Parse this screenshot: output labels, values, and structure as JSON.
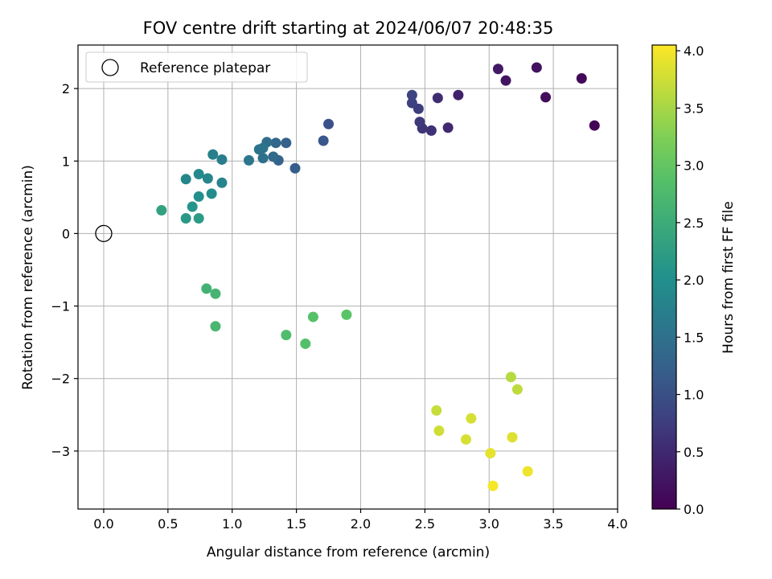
{
  "chart_data": {
    "type": "scatter",
    "title": "FOV centre drift starting at 2024/06/07 20:48:35",
    "xlabel": "Angular distance from reference (arcmin)",
    "ylabel": "Rotation from reference (arcmin)",
    "xlim": [
      -0.2,
      4.0
    ],
    "ylim": [
      -3.8,
      2.6
    ],
    "xticks": [
      0.0,
      0.5,
      1.0,
      1.5,
      2.0,
      2.5,
      3.0,
      3.5,
      4.0
    ],
    "xtick_labels": [
      "0.0",
      "0.5",
      "1.0",
      "1.5",
      "2.0",
      "2.5",
      "3.0",
      "3.5",
      "4.0"
    ],
    "yticks": [
      -3,
      -2,
      -1,
      0,
      1,
      2
    ],
    "ytick_labels": [
      "−3",
      "−2",
      "−1",
      "0",
      "1",
      "2"
    ],
    "grid": true,
    "colormap": "viridis",
    "colorbar": {
      "label": "Hours from first FF file",
      "min": 0.0,
      "max": 4.05,
      "ticks": [
        0.0,
        0.5,
        1.0,
        1.5,
        2.0,
        2.5,
        3.0,
        3.5,
        4.0
      ],
      "tick_labels": [
        "0.0",
        "0.5",
        "1.0",
        "1.5",
        "2.0",
        "2.5",
        "3.0",
        "3.5",
        "4.0"
      ]
    },
    "legend": {
      "position": "upper-left",
      "entries": [
        "Reference platepar"
      ]
    },
    "reference_point": {
      "x": 0.0,
      "y": 0.0,
      "label": "Reference platepar"
    },
    "points": [
      {
        "x": 3.82,
        "y": 1.49,
        "c": 0.05
      },
      {
        "x": 3.72,
        "y": 2.14,
        "c": 0.1
      },
      {
        "x": 3.44,
        "y": 1.88,
        "c": 0.15
      },
      {
        "x": 3.37,
        "y": 2.29,
        "c": 0.2
      },
      {
        "x": 3.13,
        "y": 2.11,
        "c": 0.25
      },
      {
        "x": 3.07,
        "y": 2.27,
        "c": 0.3
      },
      {
        "x": 2.76,
        "y": 1.91,
        "c": 0.4
      },
      {
        "x": 2.68,
        "y": 1.46,
        "c": 0.5
      },
      {
        "x": 2.6,
        "y": 1.87,
        "c": 0.55
      },
      {
        "x": 2.55,
        "y": 1.42,
        "c": 0.6
      },
      {
        "x": 2.48,
        "y": 1.45,
        "c": 0.65
      },
      {
        "x": 2.46,
        "y": 1.54,
        "c": 0.7
      },
      {
        "x": 2.45,
        "y": 1.72,
        "c": 0.75
      },
      {
        "x": 2.4,
        "y": 1.8,
        "c": 0.8
      },
      {
        "x": 2.4,
        "y": 1.91,
        "c": 0.85
      },
      {
        "x": 1.75,
        "y": 1.51,
        "c": 1.0
      },
      {
        "x": 1.71,
        "y": 1.28,
        "c": 1.1
      },
      {
        "x": 1.49,
        "y": 0.9,
        "c": 1.2
      },
      {
        "x": 1.42,
        "y": 1.25,
        "c": 1.25
      },
      {
        "x": 1.36,
        "y": 1.01,
        "c": 1.3
      },
      {
        "x": 1.34,
        "y": 1.25,
        "c": 1.35
      },
      {
        "x": 1.32,
        "y": 1.06,
        "c": 1.4
      },
      {
        "x": 1.27,
        "y": 1.26,
        "c": 1.45
      },
      {
        "x": 1.24,
        "y": 1.04,
        "c": 1.5
      },
      {
        "x": 1.24,
        "y": 1.18,
        "c": 1.55
      },
      {
        "x": 1.21,
        "y": 1.16,
        "c": 1.55
      },
      {
        "x": 1.13,
        "y": 1.01,
        "c": 1.6
      },
      {
        "x": 0.92,
        "y": 1.02,
        "c": 1.7
      },
      {
        "x": 0.85,
        "y": 1.09,
        "c": 1.75
      },
      {
        "x": 0.92,
        "y": 0.7,
        "c": 1.8
      },
      {
        "x": 0.81,
        "y": 0.76,
        "c": 1.85
      },
      {
        "x": 0.64,
        "y": 0.75,
        "c": 1.85
      },
      {
        "x": 0.74,
        "y": 0.82,
        "c": 1.9
      },
      {
        "x": 0.84,
        "y": 0.55,
        "c": 1.95
      },
      {
        "x": 0.74,
        "y": 0.51,
        "c": 2.0
      },
      {
        "x": 0.69,
        "y": 0.37,
        "c": 2.1
      },
      {
        "x": 0.64,
        "y": 0.21,
        "c": 2.15
      },
      {
        "x": 0.74,
        "y": 0.21,
        "c": 2.2
      },
      {
        "x": 0.45,
        "y": 0.32,
        "c": 2.3
      },
      {
        "x": 0.8,
        "y": -0.76,
        "c": 2.6
      },
      {
        "x": 0.87,
        "y": -0.83,
        "c": 2.65
      },
      {
        "x": 0.87,
        "y": -1.28,
        "c": 2.7
      },
      {
        "x": 1.42,
        "y": -1.4,
        "c": 2.8
      },
      {
        "x": 1.57,
        "y": -1.52,
        "c": 2.85
      },
      {
        "x": 1.63,
        "y": -1.15,
        "c": 2.9
      },
      {
        "x": 1.89,
        "y": -1.12,
        "c": 2.95
      },
      {
        "x": 3.17,
        "y": -1.98,
        "c": 3.6
      },
      {
        "x": 3.22,
        "y": -2.15,
        "c": 3.65
      },
      {
        "x": 2.59,
        "y": -2.44,
        "c": 3.7
      },
      {
        "x": 2.61,
        "y": -2.72,
        "c": 3.75
      },
      {
        "x": 2.86,
        "y": -2.55,
        "c": 3.8
      },
      {
        "x": 2.82,
        "y": -2.84,
        "c": 3.8
      },
      {
        "x": 3.18,
        "y": -2.81,
        "c": 3.85
      },
      {
        "x": 3.01,
        "y": -3.03,
        "c": 3.9
      },
      {
        "x": 3.3,
        "y": -3.28,
        "c": 3.95
      },
      {
        "x": 3.03,
        "y": -3.48,
        "c": 4.0
      }
    ]
  }
}
